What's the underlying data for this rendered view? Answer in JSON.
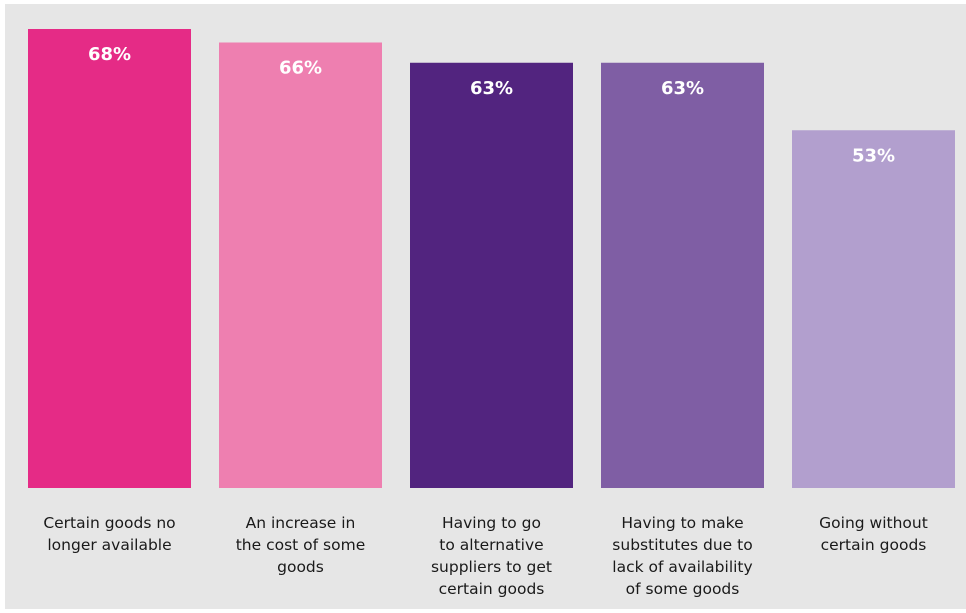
{
  "chart_data": {
    "type": "bar",
    "categories": [
      [
        "Certain goods no",
        "longer available"
      ],
      [
        "An increase in",
        "the cost of some",
        "goods"
      ],
      [
        "Having to go",
        "to alternative",
        "suppliers to get",
        "certain goods"
      ],
      [
        "Having to make",
        "substitutes due to",
        "lack of availability",
        "of some goods"
      ],
      [
        "Going without",
        "certain goods"
      ]
    ],
    "values": [
      68,
      66,
      63,
      63,
      53
    ],
    "value_labels": [
      "68%",
      "66%",
      "63%",
      "63%",
      "53%"
    ],
    "colors": [
      "#e52b86",
      "#ee7fb0",
      "#52247f",
      "#7f5ea4",
      "#b29fce"
    ],
    "title": "",
    "xlabel": "",
    "ylabel": "",
    "ylim": [
      0,
      70
    ],
    "grid": false,
    "legend": "none",
    "background": "#e6e6e6"
  }
}
